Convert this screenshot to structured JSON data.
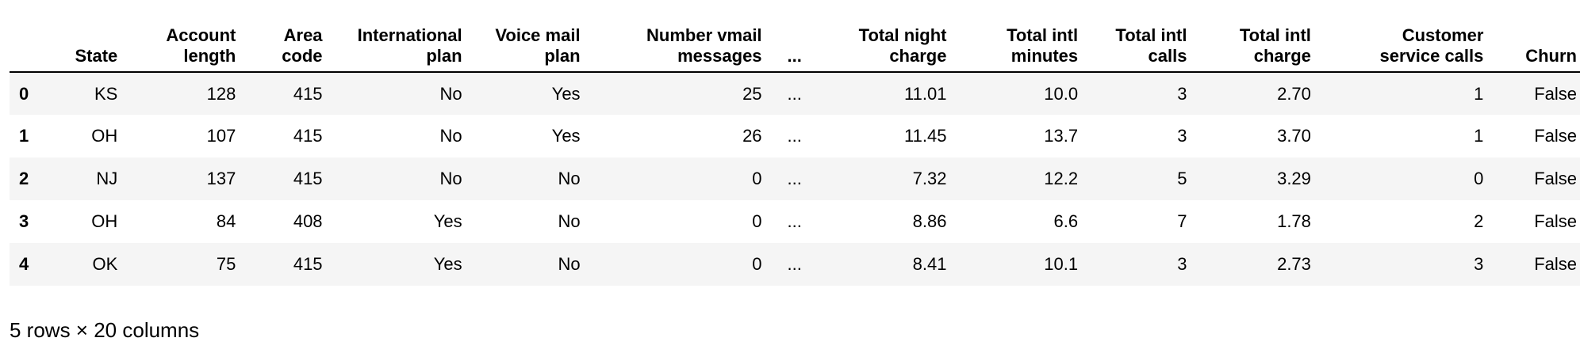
{
  "columns": [
    "",
    "State",
    "Account\nlength",
    "Area\ncode",
    "International\nplan",
    "Voice mail\nplan",
    "Number vmail\nmessages",
    "...",
    "Total night\ncharge",
    "Total intl\nminutes",
    "Total intl\ncalls",
    "Total intl\ncharge",
    "Customer\nservice calls",
    "Churn"
  ],
  "rows": [
    [
      "0",
      "KS",
      "128",
      "415",
      "No",
      "Yes",
      "25",
      "...",
      "11.01",
      "10.0",
      "3",
      "2.70",
      "1",
      "False"
    ],
    [
      "1",
      "OH",
      "107",
      "415",
      "No",
      "Yes",
      "26",
      "...",
      "11.45",
      "13.7",
      "3",
      "3.70",
      "1",
      "False"
    ],
    [
      "2",
      "NJ",
      "137",
      "415",
      "No",
      "No",
      "0",
      "...",
      "7.32",
      "12.2",
      "5",
      "3.29",
      "0",
      "False"
    ],
    [
      "3",
      "OH",
      "84",
      "408",
      "Yes",
      "No",
      "0",
      "...",
      "8.86",
      "6.6",
      "7",
      "1.78",
      "2",
      "False"
    ],
    [
      "4",
      "OK",
      "75",
      "415",
      "Yes",
      "No",
      "0",
      "...",
      "8.41",
      "10.1",
      "3",
      "2.73",
      "3",
      "False"
    ]
  ],
  "summary": "5 rows × 20 columns"
}
